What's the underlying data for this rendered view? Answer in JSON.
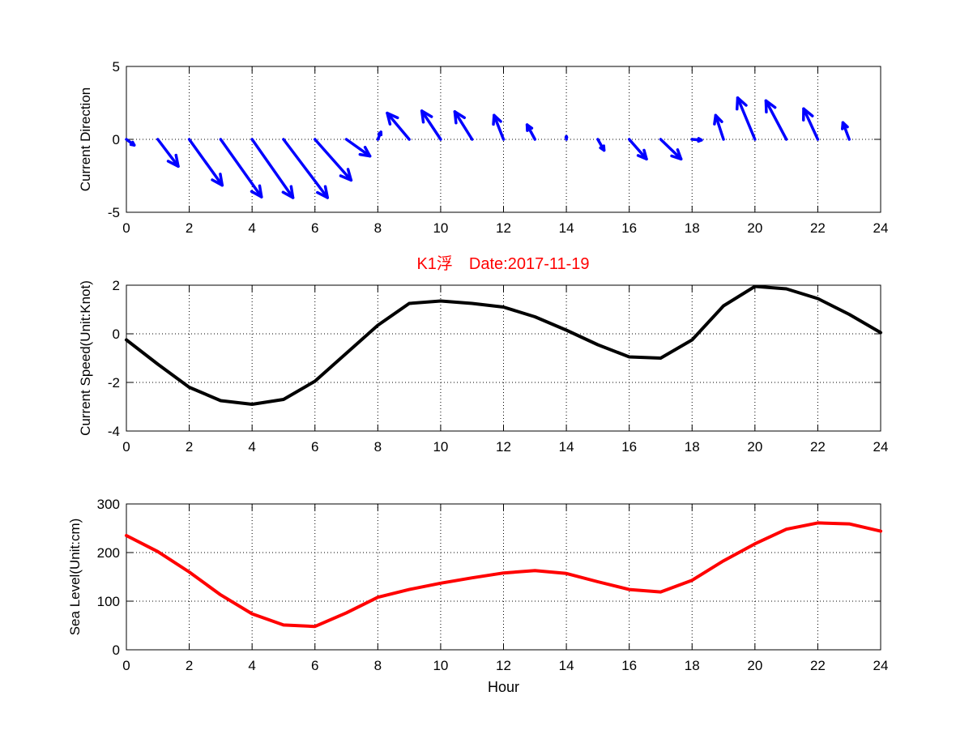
{
  "title": "K1浮　Date:2017-11-19",
  "colors": {
    "title": "#ff0000",
    "direction": "#0000ff",
    "speed": "#000000",
    "sea_level": "#ff0000",
    "axes": "#000000",
    "grid": "#000000",
    "background": "#ffffff"
  },
  "chart_data": [
    {
      "type": "quiver",
      "ylabel": "Current Direction",
      "xlabel": "",
      "xlim": [
        0,
        24
      ],
      "ylim": [
        -5,
        5
      ],
      "x_ticks": [
        0,
        2,
        4,
        6,
        8,
        10,
        12,
        14,
        16,
        18,
        20,
        22,
        24
      ],
      "y_ticks": [
        -5,
        0,
        5
      ],
      "grid": true,
      "vectors": [
        {
          "x": 0,
          "u": 0.25,
          "v": -0.4
        },
        {
          "x": 1,
          "u": 0.65,
          "v": -1.85
        },
        {
          "x": 2,
          "u": 1.05,
          "v": -3.15
        },
        {
          "x": 3,
          "u": 1.3,
          "v": -3.95
        },
        {
          "x": 4,
          "u": 1.3,
          "v": -4.0
        },
        {
          "x": 5,
          "u": 1.4,
          "v": -4.0
        },
        {
          "x": 6,
          "u": 1.15,
          "v": -2.8
        },
        {
          "x": 7,
          "u": 0.75,
          "v": -1.15
        },
        {
          "x": 8,
          "u": 0.1,
          "v": 0.5
        },
        {
          "x": 9,
          "u": -0.7,
          "v": 1.8
        },
        {
          "x": 10,
          "u": -0.6,
          "v": 1.95
        },
        {
          "x": 11,
          "u": -0.55,
          "v": 1.9
        },
        {
          "x": 12,
          "u": -0.3,
          "v": 1.65
        },
        {
          "x": 13,
          "u": -0.25,
          "v": 1.0
        },
        {
          "x": 14,
          "u": 0.0,
          "v": 0.2
        },
        {
          "x": 15,
          "u": 0.2,
          "v": -0.75
        },
        {
          "x": 16,
          "u": 0.55,
          "v": -1.35
        },
        {
          "x": 17,
          "u": 0.65,
          "v": -1.35
        },
        {
          "x": 18,
          "u": 0.3,
          "v": -0.05
        },
        {
          "x": 19,
          "u": -0.25,
          "v": 1.65
        },
        {
          "x": 20,
          "u": -0.55,
          "v": 2.85
        },
        {
          "x": 21,
          "u": -0.65,
          "v": 2.65
        },
        {
          "x": 22,
          "u": -0.45,
          "v": 2.1
        },
        {
          "x": 23,
          "u": -0.2,
          "v": 1.15
        }
      ]
    },
    {
      "type": "line",
      "ylabel": "Current Speed(Unit:Knot)",
      "xlabel": "",
      "xlim": [
        0,
        24
      ],
      "ylim": [
        -4,
        2
      ],
      "x_ticks": [
        0,
        2,
        4,
        6,
        8,
        10,
        12,
        14,
        16,
        18,
        20,
        22,
        24
      ],
      "y_ticks": [
        -4,
        -2,
        0,
        2
      ],
      "grid": true,
      "series": [
        {
          "x": [
            0,
            1,
            2,
            3,
            4,
            5,
            6,
            7,
            8,
            9,
            10,
            11,
            12,
            13,
            14,
            15,
            16,
            17,
            18,
            19,
            20,
            21,
            22,
            23,
            24
          ],
          "values": [
            -0.25,
            -1.25,
            -2.2,
            -2.75,
            -2.9,
            -2.7,
            -1.95,
            -0.8,
            0.35,
            1.25,
            1.35,
            1.25,
            1.1,
            0.7,
            0.15,
            -0.45,
            -0.95,
            -1.0,
            -0.25,
            1.15,
            1.95,
            1.85,
            1.45,
            0.8,
            0.05
          ]
        }
      ]
    },
    {
      "type": "line",
      "ylabel": "Sea Level(Unit:cm)",
      "xlabel": "Hour",
      "xlim": [
        0,
        24
      ],
      "ylim": [
        0,
        300
      ],
      "x_ticks": [
        0,
        2,
        4,
        6,
        8,
        10,
        12,
        14,
        16,
        18,
        20,
        22,
        24
      ],
      "y_ticks": [
        0,
        100,
        200,
        300
      ],
      "grid": true,
      "series": [
        {
          "x": [
            0,
            1,
            2,
            3,
            4,
            5,
            6,
            7,
            8,
            9,
            10,
            11,
            12,
            13,
            14,
            15,
            16,
            17,
            18,
            19,
            20,
            21,
            22,
            23,
            24
          ],
          "values": [
            235,
            202,
            160,
            113,
            74,
            51,
            48,
            76,
            108,
            124,
            137,
            148,
            158,
            163,
            157,
            140,
            124,
            119,
            143,
            183,
            218,
            248,
            261,
            259,
            244
          ]
        }
      ]
    }
  ]
}
